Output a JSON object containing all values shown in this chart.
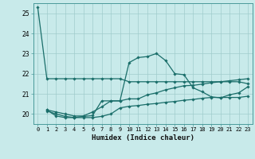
{
  "xlabel": "Humidex (Indice chaleur)",
  "bg_color": "#c8eaea",
  "line_color": "#1a6e6a",
  "grid_color": "#a0cccc",
  "ylim": [
    19.5,
    25.5
  ],
  "xlim": [
    -0.5,
    23.5
  ],
  "yticks": [
    20,
    21,
    22,
    23,
    24,
    25
  ],
  "xticks": [
    0,
    1,
    2,
    3,
    4,
    5,
    6,
    7,
    8,
    9,
    10,
    11,
    12,
    13,
    14,
    15,
    16,
    17,
    18,
    19,
    20,
    21,
    22,
    23
  ],
  "series": [
    [
      25.3,
      21.75,
      21.75,
      21.75,
      21.75,
      21.75,
      21.75,
      21.75,
      21.75,
      21.75,
      21.6,
      21.6,
      21.6,
      21.6,
      21.6,
      21.6,
      21.6,
      21.6,
      21.6,
      21.6,
      21.6,
      21.6,
      21.6,
      21.5
    ],
    [
      null,
      20.2,
      19.9,
      19.82,
      19.82,
      19.88,
      19.92,
      20.65,
      20.65,
      20.65,
      22.55,
      22.8,
      22.85,
      23.0,
      22.65,
      22.0,
      21.95,
      21.3,
      21.1,
      20.85,
      20.8,
      20.95,
      21.05,
      21.35
    ],
    [
      null,
      20.2,
      20.1,
      20.0,
      19.9,
      19.9,
      20.1,
      20.35,
      20.65,
      20.65,
      20.75,
      20.75,
      20.95,
      21.05,
      21.2,
      21.3,
      21.4,
      21.42,
      21.48,
      21.55,
      21.6,
      21.65,
      21.7,
      21.75
    ],
    [
      null,
      20.15,
      20.0,
      19.88,
      19.82,
      19.82,
      19.82,
      19.88,
      20.0,
      20.3,
      20.38,
      20.42,
      20.48,
      20.52,
      20.58,
      20.62,
      20.68,
      20.72,
      20.78,
      20.82,
      20.82,
      20.82,
      20.82,
      20.88
    ]
  ]
}
